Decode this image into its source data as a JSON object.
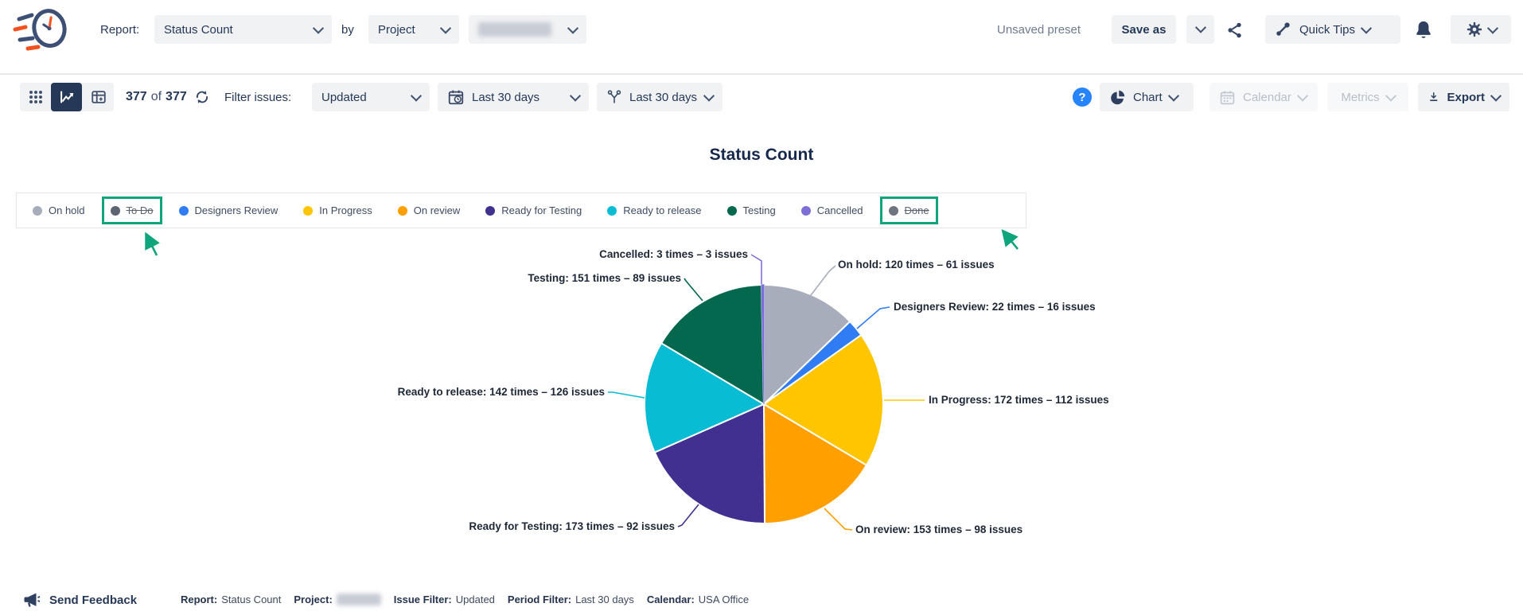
{
  "header": {
    "report_label": "Report:",
    "report_value": "Status Count",
    "by_label": "by",
    "group_value": "Project",
    "unsaved_preset": "Unsaved preset",
    "save_as": "Save as",
    "quick_tips": "Quick Tips"
  },
  "toolbar": {
    "count_current": "377",
    "count_of": "of",
    "count_total": "377",
    "filter_issues_label": "Filter issues:",
    "issue_filter_value": "Updated",
    "date_filter_value": "Last 30 days",
    "period_filter_value": "Last 30 days",
    "chart_button": "Chart",
    "calendar_button": "Calendar",
    "metrics_button": "Metrics",
    "export_button": "Export"
  },
  "chart_title": "Status Count",
  "legend": {
    "items": [
      {
        "label": "On hold",
        "color": "#A7ADBB",
        "struck": false,
        "annotated": false
      },
      {
        "label": "To Do",
        "color": "#5D6573",
        "struck": true,
        "annotated": true
      },
      {
        "label": "Designers Review",
        "color": "#2F7CF5",
        "struck": false,
        "annotated": false
      },
      {
        "label": "In Progress",
        "color": "#FEC500",
        "struck": false,
        "annotated": false
      },
      {
        "label": "On review",
        "color": "#FFA000",
        "struck": false,
        "annotated": false
      },
      {
        "label": "Ready for Testing",
        "color": "#41308F",
        "struck": false,
        "annotated": false
      },
      {
        "label": "Ready to release",
        "color": "#07BCD3",
        "struck": false,
        "annotated": false
      },
      {
        "label": "Testing",
        "color": "#03684D",
        "struck": false,
        "annotated": false
      },
      {
        "label": "Cancelled",
        "color": "#7D6FD8",
        "struck": false,
        "annotated": false
      },
      {
        "label": "Done",
        "color": "#6E7480",
        "struck": true,
        "annotated": true
      }
    ]
  },
  "chart_data": {
    "type": "pie",
    "title": "Status Count",
    "label_format": "{label}: {times} times – {issues} issues",
    "slices": [
      {
        "label": "On hold",
        "times": 120,
        "issues": 61,
        "color": "#A7ADBB"
      },
      {
        "label": "Designers Review",
        "times": 22,
        "issues": 16,
        "color": "#2F7CF5"
      },
      {
        "label": "In Progress",
        "times": 172,
        "issues": 112,
        "color": "#FEC500"
      },
      {
        "label": "On review",
        "times": 153,
        "issues": 98,
        "color": "#FFA000"
      },
      {
        "label": "Ready for Testing",
        "times": 173,
        "issues": 92,
        "color": "#41308F"
      },
      {
        "label": "Ready to release",
        "times": 142,
        "issues": 126,
        "color": "#07BCD3"
      },
      {
        "label": "Testing",
        "times": 151,
        "issues": 89,
        "color": "#03684D"
      },
      {
        "label": "Cancelled",
        "times": 3,
        "issues": 3,
        "color": "#7D6FD8"
      }
    ],
    "legend_position": "top",
    "annotation_color": "#0EA57C"
  },
  "footer": {
    "send_feedback": "Send Feedback",
    "items": [
      {
        "label": "Report:",
        "value": "Status Count",
        "blurred": false
      },
      {
        "label": "Project:",
        "value": "",
        "blurred": true
      },
      {
        "label": "Issue Filter:",
        "value": "Updated",
        "blurred": false
      },
      {
        "label": "Period Filter:",
        "value": "Last 30 days",
        "blurred": false
      },
      {
        "label": "Calendar:",
        "value": "USA Office",
        "blurred": false
      }
    ]
  }
}
